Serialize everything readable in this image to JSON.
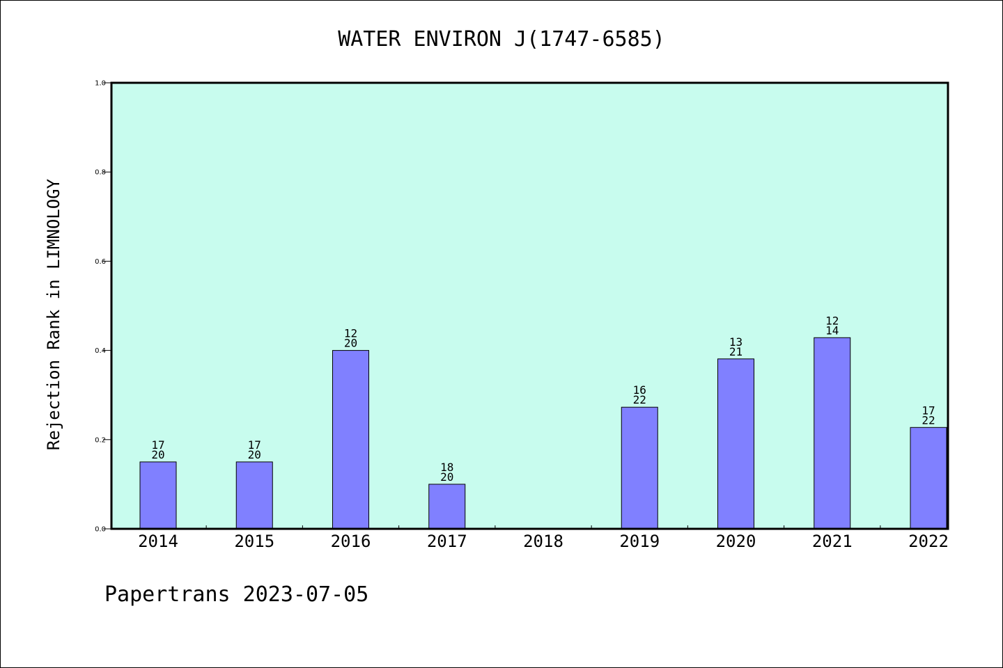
{
  "chart_data": {
    "type": "bar",
    "title": "WATER ENVIRON J(1747-6585)",
    "xlabel": "",
    "ylabel": "Rejection Rank in LIMNOLOGY",
    "ylim": [
      0,
      1.0
    ],
    "yticks": [
      "0.0",
      "0.2",
      "0.4",
      "0.6",
      "0.8",
      "1.0"
    ],
    "categories": [
      "2014",
      "2015",
      "2016",
      "2017",
      "2018",
      "2019",
      "2020",
      "2021",
      "2022"
    ],
    "values": [
      0.15,
      0.15,
      0.4,
      0.1,
      null,
      0.2727,
      0.381,
      0.4286,
      0.2273
    ],
    "labels_top": [
      "17",
      "17",
      "12",
      "18",
      "",
      "16",
      "13",
      "12",
      "17"
    ],
    "labels_bottom": [
      "20",
      "20",
      "20",
      "20",
      "",
      "22",
      "21",
      "14",
      "22"
    ],
    "grid": false,
    "legend": "none",
    "colors": {
      "plot_background": "#c8fcee",
      "bar_fill": "#8080ff",
      "bar_stroke": "#000000"
    }
  },
  "footer": "Papertrans 2023-07-05"
}
